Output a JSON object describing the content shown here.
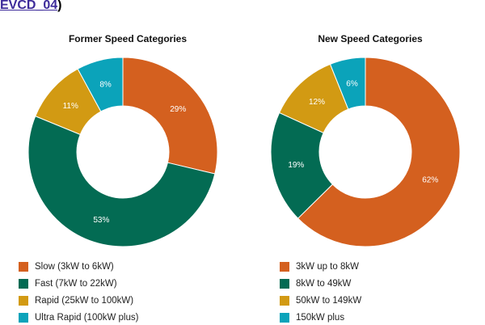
{
  "page": {
    "heading_link": "EVCD_04",
    "heading_suffix": ")"
  },
  "chart_data": [
    {
      "type": "pie",
      "title": "Former Speed Categories",
      "categories": [
        "Slow (3kW to 6kW)",
        "Fast (7kW to 22kW)",
        "Rapid (25kW to 100kW)",
        "Ultra Rapid (100kW plus)"
      ],
      "values": [
        29,
        53,
        11,
        8
      ],
      "labels": [
        "29%",
        "53%",
        "11%",
        "8%"
      ],
      "colors": [
        "#d4601f",
        "#036b53",
        "#d29a13",
        "#0ba3ba"
      ],
      "legend": "bottom"
    },
    {
      "type": "pie",
      "title": "New Speed Categories",
      "categories": [
        "3kW up to 8kW",
        "8kW to 49kW",
        "50kW to 149kW",
        "150kW plus"
      ],
      "values": [
        62,
        19,
        12,
        6
      ],
      "labels": [
        "62%",
        "19%",
        "12%",
        "6%"
      ],
      "colors": [
        "#d4601f",
        "#036b53",
        "#d29a13",
        "#0ba3ba"
      ],
      "legend": "bottom"
    }
  ]
}
